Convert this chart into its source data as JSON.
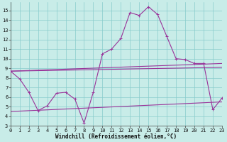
{
  "background_color": "#c8ece8",
  "grid_color": "#88cccc",
  "line_color": "#993399",
  "xlabel": "Windchill (Refroidissement éolien,°C)",
  "ylim": [
    3,
    15.9
  ],
  "xlim": [
    0,
    23
  ],
  "yticks": [
    3,
    4,
    5,
    6,
    7,
    8,
    9,
    10,
    11,
    12,
    13,
    14,
    15
  ],
  "xticks": [
    0,
    1,
    2,
    3,
    4,
    5,
    6,
    7,
    8,
    9,
    10,
    11,
    12,
    13,
    14,
    15,
    16,
    17,
    18,
    19,
    20,
    21,
    22,
    23
  ],
  "line_main_x": [
    0,
    1,
    2,
    3,
    4,
    5,
    6,
    7,
    8,
    9,
    10,
    11,
    12,
    13,
    14,
    15,
    16,
    17,
    18,
    19,
    20,
    21,
    22,
    23
  ],
  "line_main_y": [
    8.7,
    7.9,
    6.5,
    4.6,
    5.1,
    6.4,
    6.5,
    5.8,
    3.3,
    6.5,
    10.5,
    11.0,
    12.1,
    14.8,
    14.5,
    15.4,
    14.6,
    12.3,
    10.0,
    9.9,
    9.5,
    9.5,
    4.7,
    5.9
  ],
  "trend_upper_x0": 0,
  "trend_upper_y0": 8.7,
  "trend_upper_x1": 23,
  "trend_upper_y1": 9.5,
  "trend_mid_x0": 0,
  "trend_mid_y0": 8.7,
  "trend_mid_x1": 23,
  "trend_mid_y1": 9.1,
  "trend_lower_x0": 0,
  "trend_lower_y0": 4.5,
  "trend_lower_x1": 23,
  "trend_lower_y1": 5.5,
  "tick_fontsize": 5,
  "xlabel_fontsize": 5.5,
  "linewidth": 0.8,
  "marker_size": 3.0,
  "marker_lw": 0.7
}
